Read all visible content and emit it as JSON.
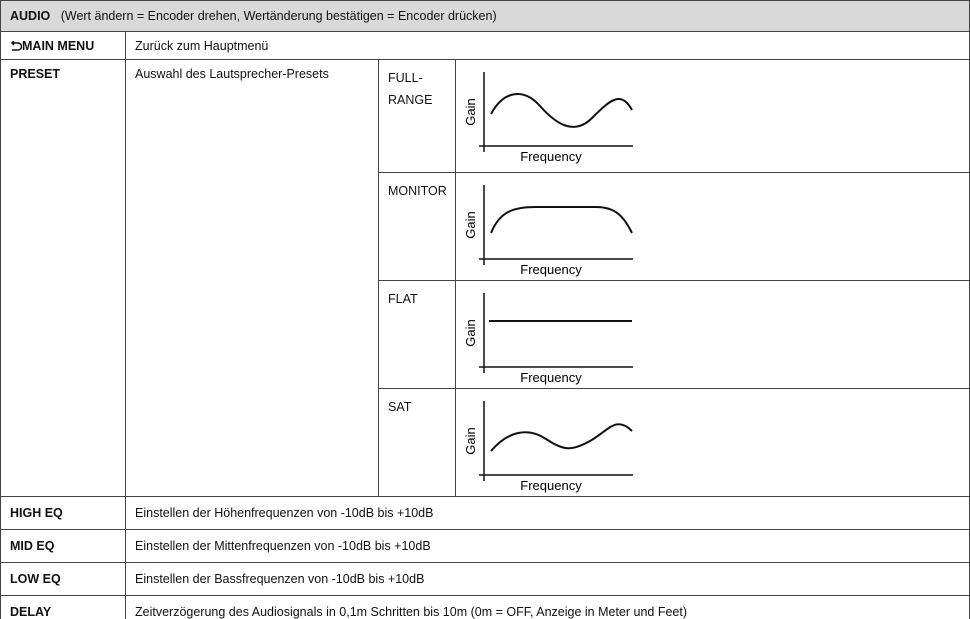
{
  "header": {
    "title": "AUDIO",
    "note": "(Wert ändern = Encoder drehen, Wertänderung bestätigen = Encoder drücken)"
  },
  "main_menu": {
    "label": "MAIN MENU",
    "description": "Zurück zum Hauptmenü"
  },
  "preset": {
    "label": "PRESET",
    "description": "Auswahl des Lautsprecher-Presets",
    "options": [
      {
        "name": "FULL-\nRANGE",
        "y_label": "Gain",
        "x_label": "Frequency"
      },
      {
        "name": "MONITOR",
        "y_label": "Gain",
        "x_label": "Frequency"
      },
      {
        "name": "FLAT",
        "y_label": "Gain",
        "x_label": "Frequency"
      },
      {
        "name": "SAT",
        "y_label": "Gain",
        "x_label": "Frequency"
      }
    ]
  },
  "rows": [
    {
      "label": "HIGH EQ",
      "description": "Einstellen der Höhenfrequenzen von -10dB bis +10dB"
    },
    {
      "label": "MID EQ",
      "description": "Einstellen der Mittenfrequenzen von -10dB bis +10dB"
    },
    {
      "label": "LOW EQ",
      "description": "Einstellen der Bassfrequenzen von -10dB bis +10dB"
    },
    {
      "label": "DELAY",
      "description": "Zeitverzögerung des Audiosignals in 0,1m Schritten bis 10m (0m = OFF, Anzeige in Meter und Feet)"
    }
  ]
}
